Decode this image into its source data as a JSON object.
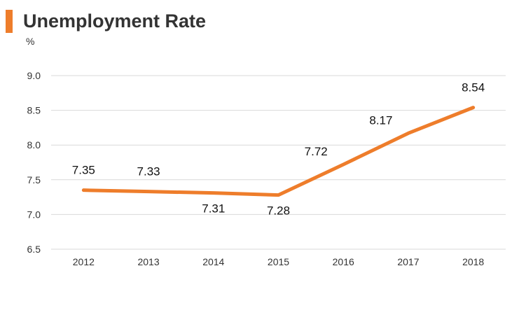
{
  "colors": {
    "accent": "#ee7d2b",
    "grid": "#d9d9d9",
    "text": "#333333"
  },
  "chart_data": {
    "type": "line",
    "title": "Unemployment Rate",
    "ylabel": "%",
    "xlabel": "",
    "x": [
      "2012",
      "2013",
      "2014",
      "2015",
      "2016",
      "2017",
      "2018"
    ],
    "values": [
      7.35,
      7.33,
      7.31,
      7.28,
      7.72,
      8.17,
      8.54
    ],
    "data_labels": [
      "7.35",
      "7.33",
      "7.31",
      "7.28",
      "7.72",
      "8.17",
      "8.54"
    ],
    "ylim": [
      6.5,
      9.0
    ],
    "yticks": [
      6.5,
      7.0,
      7.5,
      8.0,
      8.5,
      9.0
    ],
    "ytick_labels": [
      "6.5",
      "7.0",
      "7.5",
      "8.0",
      "8.5",
      "9.0"
    ],
    "grid": true,
    "legend": "none"
  }
}
